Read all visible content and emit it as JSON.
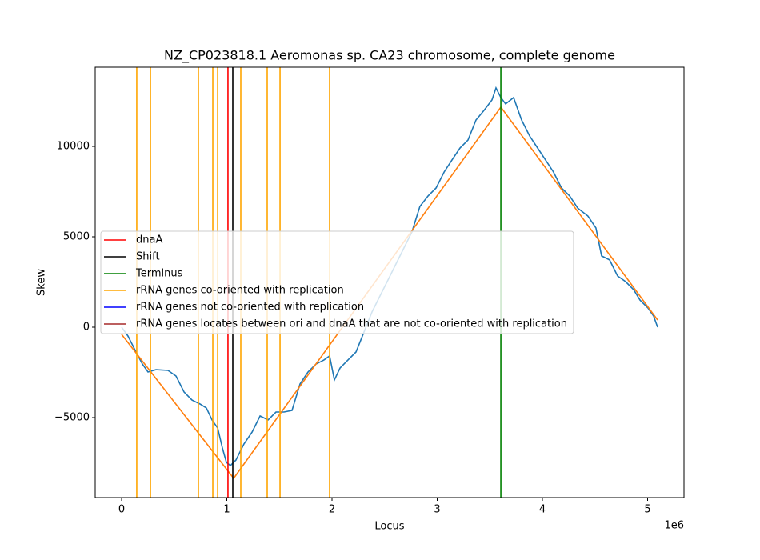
{
  "chart_data": {
    "type": "line",
    "title": "NZ_CP023818.1 Aeromonas sp. CA23 chromosome, complete genome",
    "x_label": "Locus",
    "y_label": "Skew",
    "x_offset_label": "1e6",
    "xlim": [
      -251000,
      5346000
    ],
    "ylim": [
      -9425,
      14380
    ],
    "xticks": [
      0,
      {
        "value": 1000000,
        "label": "1"
      },
      {
        "value": 2000000,
        "label": "2"
      },
      {
        "value": 3000000,
        "label": "3"
      },
      {
        "value": 4000000,
        "label": "4"
      },
      {
        "value": 5000000,
        "label": "5"
      }
    ],
    "yticks": [
      {
        "value": -5000,
        "label": "−5000"
      },
      0,
      5000,
      10000
    ],
    "grid": false,
    "legend_position": "center-left",
    "series": [
      {
        "color": "#1f77b4",
        "x": [
          0,
          61000,
          137000,
          198000,
          251000,
          327000,
          441000,
          517000,
          593000,
          669000,
          745000,
          806000,
          859000,
          913000,
          958000,
          996000,
          1034000,
          1087000,
          1163000,
          1240000,
          1316000,
          1392000,
          1468000,
          1544000,
          1620000,
          1696000,
          1772000,
          1848000,
          1924000,
          1977000,
          2023000,
          2076000,
          2152000,
          2228000,
          2304000,
          2380000,
          2456000,
          2532000,
          2608000,
          2684000,
          2760000,
          2836000,
          2913000,
          2989000,
          3065000,
          3141000,
          3217000,
          3293000,
          3369000,
          3445000,
          3521000,
          3559000,
          3605000,
          3650000,
          3726000,
          3802000,
          3878000,
          3954000,
          4030000,
          4106000,
          4182000,
          4259000,
          4335000,
          4433000,
          4509000,
          4563000,
          4639000,
          4715000,
          4791000,
          4867000,
          4928000,
          5004000,
          5057000,
          5095000
        ],
        "values": [
          0,
          -490,
          -1370,
          -2040,
          -2480,
          -2350,
          -2390,
          -2700,
          -3580,
          -4030,
          -4250,
          -4470,
          -5130,
          -5580,
          -6680,
          -7480,
          -7650,
          -7350,
          -6460,
          -5800,
          -4910,
          -5130,
          -4690,
          -4690,
          -4600,
          -3140,
          -2480,
          -2040,
          -1810,
          -1590,
          -2920,
          -2260,
          -1810,
          -1370,
          -270,
          840,
          1730,
          2610,
          3500,
          4380,
          5270,
          6680,
          7260,
          7700,
          8580,
          9250,
          9910,
          10350,
          11460,
          11990,
          12570,
          13230,
          12700,
          12350,
          12700,
          11460,
          10580,
          9910,
          9250,
          8580,
          7700,
          7260,
          6590,
          6150,
          5490,
          3940,
          3720,
          2830,
          2520,
          2080,
          1500,
          1060,
          620,
          0
        ]
      },
      {
        "color": "#ff7f0e",
        "x": [
          0,
          1065000,
          3605000,
          5095000
        ],
        "values": [
          -400,
          -8360,
          12170,
          400
        ]
      }
    ],
    "vlines": [
      {
        "name": "dnaA",
        "color": "#ff0000",
        "x": [
          1011000
        ]
      },
      {
        "name": "Shift",
        "color": "#000000",
        "x": [
          1057000
        ]
      },
      {
        "name": "Terminus",
        "color": "#008000",
        "x": [
          3605000
        ]
      },
      {
        "name": "rRNA genes co-oriented with replication",
        "color": "#ffa500",
        "x": [
          144000,
          274000,
          730000,
          867000,
          913000,
          1133000,
          1384000,
          1506000,
          1977000
        ]
      },
      {
        "name": "rRNA genes not co-oriented with replication",
        "color": "#0000ff",
        "x": []
      },
      {
        "name": "rRNA genes locates between ori and dnaA that are not co-oriented with replication",
        "color": "#a52a2a",
        "x": []
      }
    ]
  }
}
